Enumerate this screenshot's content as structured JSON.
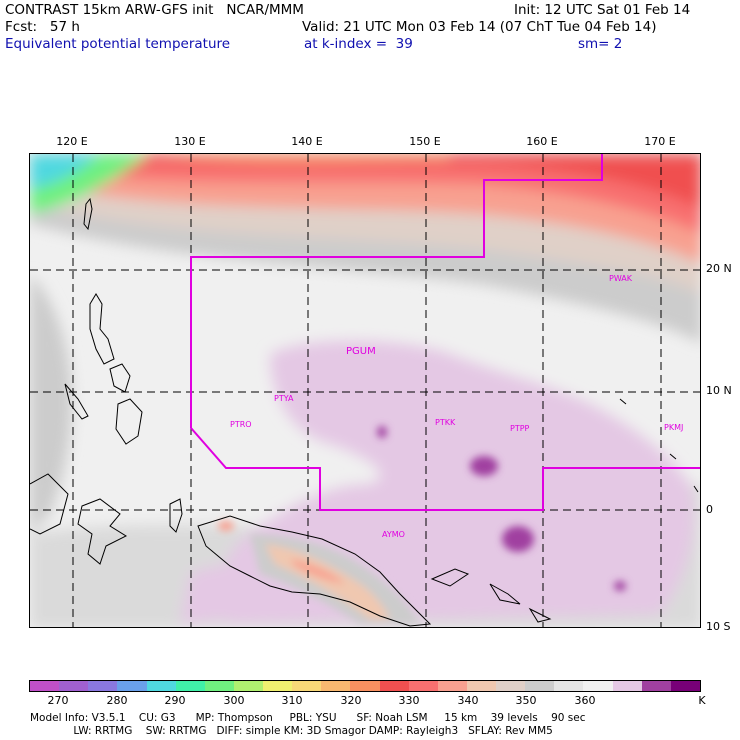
{
  "header": {
    "line1_left": "CONTRAST 15km ARW-GFS init   NCAR/MMM",
    "line1_right": "Init: 12 UTC Sat 01 Feb 14",
    "line2_left": "Fcst:   57 h",
    "line2_right": "Valid: 21 UTC Mon 03 Feb 14 (07 ChT Tue 04 Feb 14)",
    "line3_left": "Equivalent potential temperature",
    "line3_mid": "at k-index =  39",
    "line3_right": "sm= 2"
  },
  "map": {
    "lon_labels": [
      "120 E",
      "130 E",
      "140 E",
      "150 E",
      "160 E",
      "170 E"
    ],
    "lat_labels": [
      "20 N",
      "10 N",
      "0",
      "10 S"
    ],
    "stations": [
      "PWAK",
      "PGUM",
      "PTYA",
      "PTRO",
      "PTKK",
      "PTPP",
      "PKMJ",
      "AYMO"
    ],
    "colors": {
      "boundary": "#e000e0",
      "grid": "#000000",
      "land": "#000000"
    }
  },
  "colorbar": {
    "colors": [
      "#c050c8",
      "#a060d0",
      "#8a78e0",
      "#6aa0ea",
      "#50d8e0",
      "#40f0a8",
      "#70f080",
      "#b0f070",
      "#f0f070",
      "#f8d878",
      "#f8b870",
      "#f89060",
      "#f05050",
      "#f87070",
      "#f8a090",
      "#f0c8b0",
      "#e0d0c8",
      "#cccccc",
      "#e4e4e4",
      "#f0f0f0",
      "#e4c8e4",
      "#a040a0",
      "#780078"
    ],
    "labels": [
      "270",
      "280",
      "290",
      "300",
      "310",
      "320",
      "330",
      "340",
      "350",
      "360",
      "K"
    ]
  },
  "footer": {
    "line1": "Model Info: V3.5.1    CU: G3      MP: Thompson     PBL: YSU      SF: Noah LSM     15 km    39 levels    90 sec",
    "line2": "             LW: RRTMG    SW: RRTMG   DIFF: simple KM: 3D Smagor DAMP: Rayleigh3   SFLAY: Rev MM5"
  }
}
